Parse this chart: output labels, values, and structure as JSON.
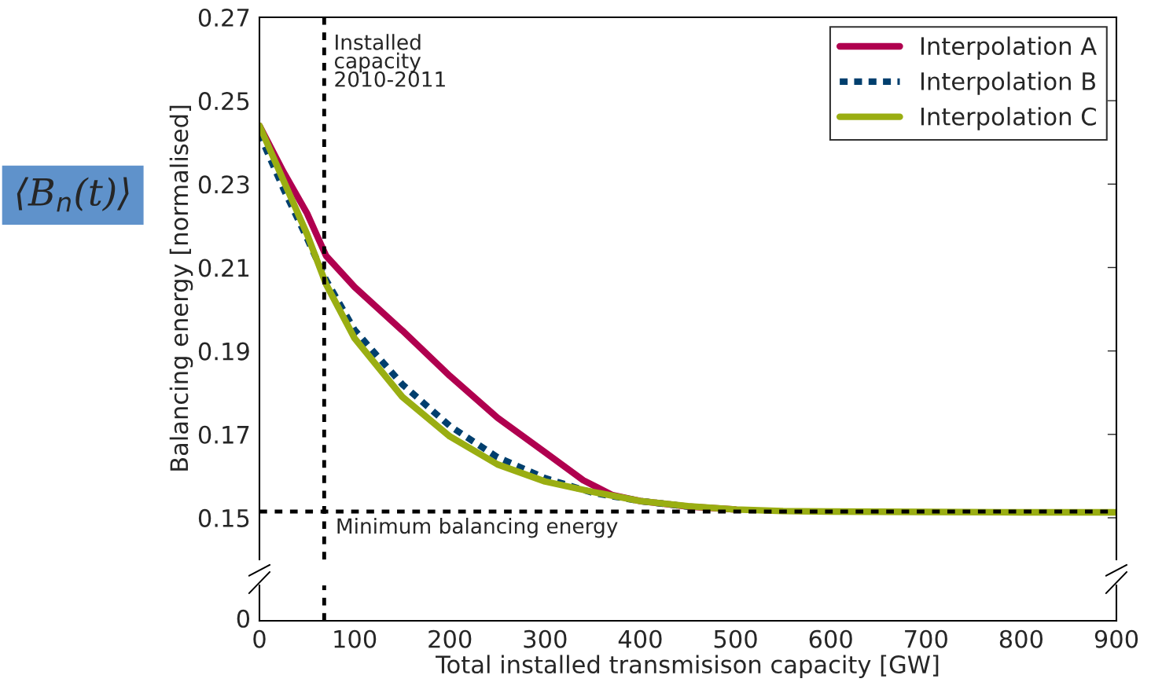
{
  "chart_data": {
    "type": "line",
    "ylabel": "Balancing energy [normalised]",
    "xlabel": "Total installed transmisison capacity [GW]",
    "ylim": [
      0.14,
      0.27
    ],
    "yticks": [
      0.15,
      0.17,
      0.19,
      0.21,
      0.23,
      0.25,
      0.27
    ],
    "xlim": [
      0,
      900
    ],
    "xticks": [
      0,
      100,
      200,
      300,
      400,
      500,
      600,
      700,
      800,
      900
    ],
    "legend": "top right",
    "series": [
      {
        "name": "Interpolation A",
        "color": "#b0004f",
        "line_style": "solid",
        "x": [
          0,
          25,
          50,
          70,
          100,
          150,
          200,
          250,
          300,
          340,
          370,
          390,
          400,
          450,
          500
        ],
        "values": [
          0.244,
          0.233,
          0.223,
          0.2128,
          0.2053,
          0.1949,
          0.184,
          0.174,
          0.1657,
          0.159,
          0.1555,
          0.1545,
          0.154,
          0.1527,
          0.152
        ]
      },
      {
        "name": "Interpolation B",
        "color": "#003f6e",
        "line_style": "dashed",
        "x": [
          0,
          25,
          50,
          70,
          100,
          150,
          200,
          250,
          300,
          350,
          400,
          450
        ],
        "values": [
          0.242,
          0.229,
          0.217,
          0.207,
          0.195,
          0.182,
          0.172,
          0.1645,
          0.1595,
          0.156,
          0.154,
          0.1527
        ]
      },
      {
        "name": "Interpolation C",
        "color": "#9aae12",
        "line_style": "solid",
        "x": [
          0,
          25,
          50,
          70,
          100,
          150,
          200,
          250,
          300,
          350,
          400,
          450,
          500,
          550,
          600,
          700,
          800,
          900
        ],
        "values": [
          0.244,
          0.231,
          0.218,
          0.206,
          0.193,
          0.179,
          0.1695,
          0.1628,
          0.1587,
          0.1562,
          0.154,
          0.1528,
          0.152,
          0.1516,
          0.1515,
          0.1514,
          0.1513,
          0.1513
        ]
      }
    ],
    "ref_lines": [
      {
        "axis": "x",
        "value": 68,
        "label": "Installed\ncapacity\n2010-2011",
        "color": "#000000",
        "line_style": "dashed"
      },
      {
        "axis": "y",
        "value": 0.1515,
        "label": "Minimum balancing energy",
        "color": "#000000",
        "line_style": "dashed"
      }
    ],
    "annotations": [
      "⟨B$_{n}$(t)⟩",
      "0"
    ]
  }
}
